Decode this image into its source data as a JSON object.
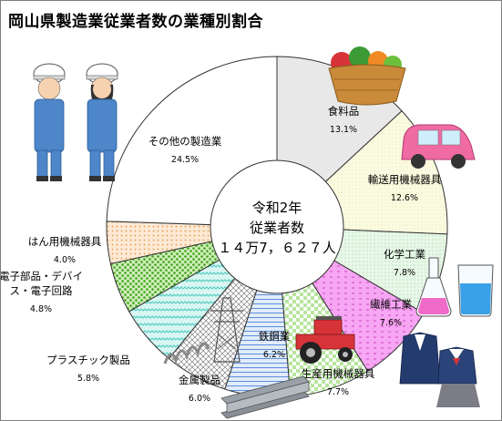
{
  "title": "岡山県製造業従業者数の業種別割合",
  "chart_data": {
    "type": "pie",
    "center_label": [
      "令和2年",
      "従業者数",
      "１４万7，６２７人"
    ],
    "slices": [
      {
        "name": "食料品",
        "value": 13.1,
        "value_label": "13.1%",
        "fill": "#e8e8e8"
      },
      {
        "name": "輸送用機械器具",
        "value": 12.6,
        "value_label": "12.6%",
        "fill": "#fbfbe2"
      },
      {
        "name": "化学工業",
        "value": 7.8,
        "value_label": "7.8%",
        "fill": "#e9fbe9"
      },
      {
        "name": "繊維工業",
        "value": 7.6,
        "value_label": "7.6%",
        "fill": "#f7a6f3"
      },
      {
        "name": "生産用機械器具",
        "value": 7.7,
        "value_label": "7.7%",
        "fill": "#d6f4c4"
      },
      {
        "name": "鉄鋼業",
        "value": 6.2,
        "value_label": "6.2%",
        "fill": "#d9e8fb"
      },
      {
        "name": "金属製品",
        "value": 6.0,
        "value_label": "6.0%",
        "fill": "#ffffff"
      },
      {
        "name": "プラスチック製品",
        "value": 5.8,
        "value_label": "5.8%",
        "fill": "#d9f6f2"
      },
      {
        "name": "電子部品・デバイ\nス・電子回路",
        "value": 4.8,
        "value_label": "4.8%",
        "fill": "#cdeeb7"
      },
      {
        "name": "はん用機械器具",
        "value": 4.0,
        "value_label": "4.0%",
        "fill": "#fde9d4"
      },
      {
        "name": "その他の製造業",
        "value": 24.5,
        "value_label": "24.5%",
        "fill": "#ffffff"
      }
    ]
  },
  "illustrations": [
    "factory-workers-icon",
    "vegetable-basket-icon",
    "pink-car-icon",
    "flask-icon",
    "beaker-icon",
    "school-uniform-icon",
    "tractor-icon",
    "power-pylon-icon",
    "steel-beam-icon",
    "spring-coil-icon"
  ]
}
